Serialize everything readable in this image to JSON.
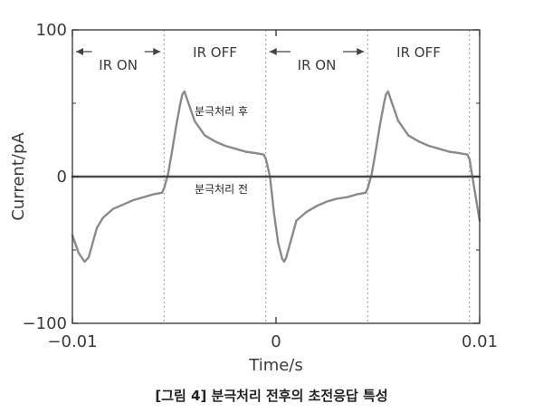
{
  "caption": "[그림 4] 분극처리 전후의 초전응답 특성",
  "chart_data": {
    "type": "line",
    "title": "",
    "xlabel": "Time/s",
    "ylabel": "Current/pA",
    "xlim": [
      -0.01,
      0.01
    ],
    "ylim": [
      -100,
      100
    ],
    "x_ticks": [
      -0.01,
      0,
      0.01
    ],
    "x_tick_labels": [
      "−0.01",
      "0",
      "0.01"
    ],
    "y_ticks": [
      -100,
      0,
      100
    ],
    "y_tick_labels": [
      "−100",
      "0",
      "100"
    ],
    "grid": false,
    "legend": "none",
    "colors": {
      "after": "#8a8a8a",
      "before": "#4a4a4a",
      "axis": "#333333",
      "divider": "#999999"
    },
    "phase_boundaries": [
      -0.0055,
      -0.0005,
      0.0045,
      0.0095
    ],
    "phases": [
      {
        "label": "IR ON",
        "x_start": -0.01,
        "x_end": -0.0055,
        "arrow": true
      },
      {
        "label": "IR OFF",
        "x_start": -0.0055,
        "x_end": -0.0005,
        "arrow": false
      },
      {
        "label": "IR ON",
        "x_start": -0.0005,
        "x_end": 0.0045,
        "arrow": true
      },
      {
        "label": "IR OFF",
        "x_start": 0.0045,
        "x_end": 0.0095,
        "arrow": false
      }
    ],
    "annotations": [
      {
        "text": "분극처리 후",
        "x": -0.004,
        "y": 42
      },
      {
        "text": "분극처리 전",
        "x": -0.004,
        "y": -11
      }
    ],
    "series": [
      {
        "x": [
          -0.01,
          -0.0097,
          -0.0094,
          -0.0092,
          -0.009,
          -0.0088,
          -0.0085,
          -0.008,
          -0.0075,
          -0.007,
          -0.0065,
          -0.006,
          -0.0056,
          -0.0055,
          -0.0053,
          -0.0051,
          -0.0049,
          -0.0047,
          -0.0046,
          -0.0045,
          -0.0043,
          -0.004,
          -0.0035,
          -0.003,
          -0.0025,
          -0.002,
          -0.0015,
          -0.001,
          -0.0006,
          -0.0005,
          -0.0003,
          -0.0001,
          0.0001,
          0.0003,
          0.0004,
          0.0005,
          0.0007,
          0.001,
          0.0015,
          0.002,
          0.0025,
          0.003,
          0.0035,
          0.004,
          0.0044,
          0.0045,
          0.0047,
          0.0049,
          0.0051,
          0.0053,
          0.0054,
          0.0055,
          0.0057,
          0.006,
          0.0065,
          0.007,
          0.0075,
          0.008,
          0.0085,
          0.009,
          0.0094,
          0.0095,
          0.0097,
          0.0099,
          0.01
        ],
        "values": [
          -40,
          -52,
          -58,
          -55,
          -45,
          -35,
          -28,
          -22,
          -19,
          -16,
          -14,
          -12,
          -11,
          -8,
          2,
          18,
          35,
          50,
          56,
          58,
          50,
          38,
          28,
          24,
          21,
          19,
          17,
          16,
          15,
          12,
          0,
          -25,
          -45,
          -56,
          -58,
          -55,
          -45,
          -30,
          -24,
          -20,
          -17,
          -15,
          -14,
          -12,
          -11,
          -8,
          2,
          18,
          35,
          50,
          56,
          58,
          50,
          38,
          28,
          24,
          21,
          19,
          17,
          16,
          15,
          12,
          -5,
          -22,
          -30
        ]
      },
      {
        "x": [
          -0.01,
          0.01
        ],
        "values": [
          0,
          0
        ]
      }
    ]
  }
}
